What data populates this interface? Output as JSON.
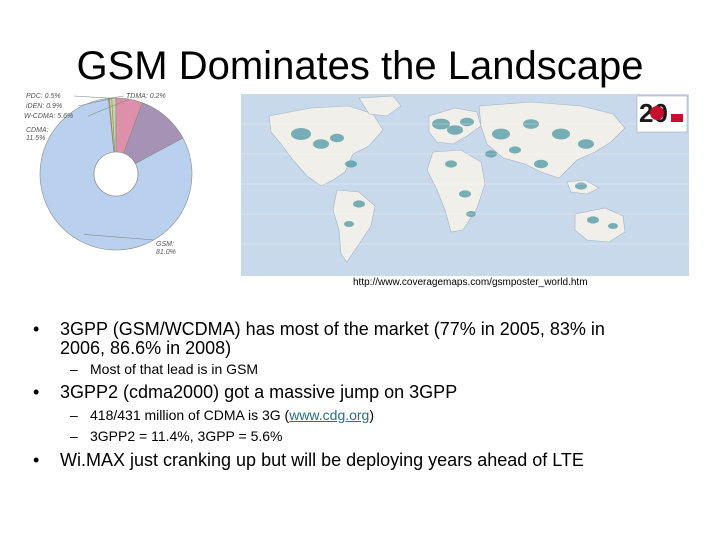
{
  "slide": {
    "title": "GSM Dominates the Landscape",
    "map_caption": "http://www.coveragemaps.com/gsmposter_world.htm",
    "map_badge_text": "20"
  },
  "bullets": [
    {
      "lines": [
        "3GPP (GSM/WCDMA) has most of the market (77% in 2005, 83% in",
        "2006, 86.6% in 2008)"
      ],
      "subs": [
        {
          "text": "Most of that lead is in GSM"
        }
      ]
    },
    {
      "lines": [
        "3GPP2 (cdma2000) got a massive jump on 3GPP"
      ],
      "subs": [
        {
          "pre": "418/431 million of CDMA is 3G (",
          "link": "www.cdg.org",
          "post": ")"
        },
        {
          "text": "3GPP2 = 11.4%, 3GPP = 5.6%"
        }
      ]
    },
    {
      "lines": [
        "Wi.MAX just cranking up but will be deploying years ahead of LTE"
      ],
      "subs": []
    }
  ],
  "chart_data": {
    "type": "pie",
    "slices": [
      {
        "name": "GSM",
        "value": 81.0,
        "label": "GSM:",
        "pct": "81.0%",
        "color": "#b9d1ee"
      },
      {
        "name": "CDMA",
        "value": 11.5,
        "label": "CDMA:",
        "pct": "11.5%",
        "color": "#a592b4"
      },
      {
        "name": "W-CDMA",
        "value": 5.6,
        "label": "W-CDMA: 5.6%",
        "color": "#de8fa9"
      },
      {
        "name": "iDEN",
        "value": 0.9,
        "label": "iDEN: 0.9%",
        "color": "#c6d5a4"
      },
      {
        "name": "PDC",
        "value": 0.5,
        "label": "PDC: 0.5%",
        "color": "#e6d67f"
      },
      {
        "name": "TDMA",
        "value": 0.2,
        "label": "TDMA: 0.2%",
        "color": "#98b8c6"
      }
    ],
    "title": "",
    "hole_color": "#ffffff",
    "edge_color": "#8a8a8a",
    "label_color": "#555555"
  },
  "map": {
    "ocean_color": "#c9d9ec",
    "land_color": "#f0efe9",
    "coverage_color": "#4f97a2"
  }
}
